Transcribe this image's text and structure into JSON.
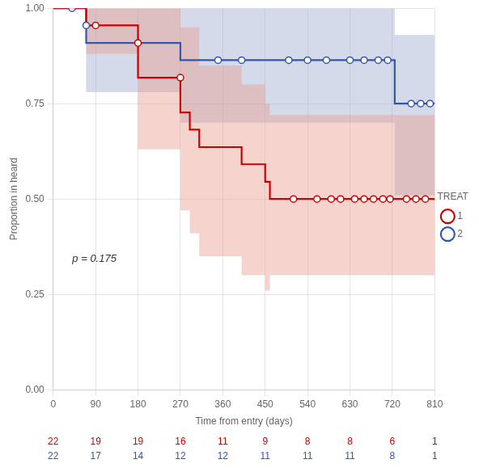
{
  "chart_data": {
    "type": "line",
    "line_style": "step",
    "xlabel": "Time from entry (days)",
    "ylabel": "Proportion in heard",
    "xlim": [
      0,
      810
    ],
    "ylim": [
      0.0,
      1.0
    ],
    "xticks": [
      0,
      90,
      180,
      270,
      360,
      450,
      540,
      630,
      720,
      810
    ],
    "yticks": [
      {
        "value": 0.0,
        "label": "0.00"
      },
      0.25,
      {
        "value": 0.5,
        "label": "0.50"
      },
      0.75,
      {
        "value": 1.0,
        "label": "1.00"
      }
    ],
    "grid": true,
    "legend": "right",
    "legend_title": "TREAT",
    "annotations": [
      {
        "text": "p = 0.175"
      }
    ],
    "at_risk_x": [
      0,
      90,
      180,
      270,
      360,
      450,
      540,
      630,
      720,
      810
    ],
    "series": [
      {
        "name": "1",
        "color": "#cc0000",
        "marker": "circle",
        "x": [
          0,
          70,
          70,
          90,
          115,
          180,
          180,
          180,
          180,
          270,
          270,
          290,
          310,
          400,
          450,
          460,
          460,
          510,
          560,
          590,
          610,
          640,
          660,
          680,
          700,
          715,
          725,
          750,
          770,
          790,
          810
        ],
        "values": [
          1.0,
          1.0,
          0.955,
          0.955,
          0.955,
          0.955,
          0.909,
          0.864,
          0.818,
          0.818,
          0.773,
          0.727,
          0.682,
          0.636,
          0.591,
          0.545,
          0.5,
          0.5,
          0.5,
          0.5,
          0.5,
          0.5,
          0.5,
          0.5,
          0.5,
          0.5,
          0.5,
          0.5,
          0.5,
          0.5,
          0.5
        ],
        "ci_upper": [
          1.0,
          1.0,
          1.0,
          1.0,
          1.0,
          1.0,
          1.0,
          1.0,
          1.0,
          1.0,
          1.0,
          0.95,
          0.95,
          0.85,
          0.8,
          0.75,
          0.72,
          0.72,
          0.72,
          0.72,
          0.72,
          0.72,
          0.72,
          0.72,
          0.72,
          0.72,
          0.72,
          0.72,
          0.72,
          0.72,
          0.72
        ],
        "ci_lower": [
          1.0,
          1.0,
          0.88,
          0.88,
          0.88,
          0.88,
          0.78,
          0.7,
          0.63,
          0.63,
          0.55,
          0.47,
          0.41,
          0.35,
          0.3,
          0.26,
          0.3,
          0.3,
          0.3,
          0.3,
          0.3,
          0.3,
          0.3,
          0.3,
          0.3,
          0.3,
          0.3,
          0.3,
          0.3,
          0.3,
          0.3
        ],
        "ci_color": "#e8a090",
        "censor_x": [
          90,
          180,
          270,
          510,
          560,
          590,
          610,
          640,
          660,
          680,
          700,
          715,
          750,
          770,
          790
        ],
        "censor_values": [
          0.955,
          0.909,
          0.818,
          0.5,
          0.5,
          0.5,
          0.5,
          0.5,
          0.5,
          0.5,
          0.5,
          0.5,
          0.5,
          0.5,
          0.5
        ],
        "at_risk": [
          22,
          19,
          19,
          16,
          11,
          9,
          8,
          8,
          6,
          1
        ]
      },
      {
        "name": "2",
        "color": "#3355aa",
        "marker": "circle",
        "x": [
          0,
          40,
          70,
          70,
          180,
          210,
          270,
          270,
          350,
          400,
          450,
          500,
          540,
          580,
          630,
          660,
          690,
          710,
          725,
          725,
          725,
          740,
          760,
          780,
          800,
          810
        ],
        "values": [
          1.0,
          1.0,
          1.0,
          0.955,
          0.909,
          0.909,
          0.909,
          0.864,
          0.864,
          0.864,
          0.864,
          0.864,
          0.864,
          0.864,
          0.864,
          0.864,
          0.864,
          0.864,
          0.864,
          0.818,
          0.773,
          0.75,
          0.75,
          0.75,
          0.75,
          0.75
        ],
        "ci_upper": [
          1.0,
          1.0,
          1.0,
          1.0,
          1.0,
          1.0,
          1.0,
          1.0,
          1.0,
          1.0,
          1.0,
          1.0,
          1.0,
          1.0,
          1.0,
          1.0,
          1.0,
          1.0,
          1.0,
          0.98,
          0.96,
          0.93,
          0.93,
          0.93,
          0.93,
          0.93
        ],
        "ci_lower": [
          1.0,
          1.0,
          1.0,
          0.87,
          0.78,
          0.78,
          0.78,
          0.7,
          0.7,
          0.7,
          0.7,
          0.7,
          0.7,
          0.7,
          0.7,
          0.7,
          0.7,
          0.7,
          0.7,
          0.62,
          0.55,
          0.51,
          0.51,
          0.51,
          0.51,
          0.51
        ],
        "ci_color": "#a0aed0",
        "censor_x": [
          40,
          70,
          350,
          400,
          500,
          540,
          580,
          630,
          660,
          690,
          710,
          760,
          780,
          800
        ],
        "censor_values": [
          1.0,
          0.955,
          0.864,
          0.864,
          0.864,
          0.864,
          0.864,
          0.864,
          0.864,
          0.864,
          0.864,
          0.75,
          0.75,
          0.75
        ],
        "at_risk": [
          22,
          17,
          14,
          12,
          12,
          11,
          11,
          11,
          8,
          1
        ]
      }
    ]
  }
}
